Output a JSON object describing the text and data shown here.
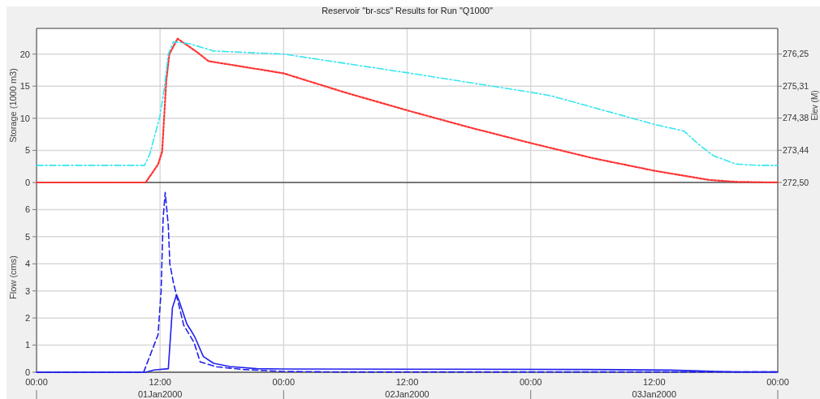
{
  "chart_data": [
    {
      "type": "line",
      "title": "Reservoir \"br-scs\" Results for Run \"Q1000\"",
      "ylabel": "Storage (1000 m3)",
      "y2label": "Elev (M)",
      "xlim": [
        "2000-01-01T00:00",
        "2000-01-04T00:00"
      ],
      "xticks": [
        {
          "value": "2000-01-01T00:00",
          "label": null
        },
        {
          "value": "2000-01-01T12:00",
          "label": null
        },
        {
          "value": "2000-01-02T00:00",
          "label": null
        },
        {
          "value": "2000-01-02T12:00",
          "label": null
        },
        {
          "value": "2000-01-03T00:00",
          "label": null
        },
        {
          "value": "2000-01-03T12:00",
          "label": null
        },
        {
          "value": "2000-01-04T00:00",
          "label": null
        }
      ],
      "ylim": [
        0,
        24
      ],
      "yticks": [
        0,
        5,
        10,
        15,
        20
      ],
      "y2lim": [
        272.5,
        277
      ],
      "y2ticks": [
        {
          "value": 272.5,
          "label": "272,50"
        },
        {
          "value": 273.44,
          "label": "273,44"
        },
        {
          "value": 274.38,
          "label": "274,38"
        },
        {
          "value": 275.31,
          "label": "275,31"
        },
        {
          "value": 276.25,
          "label": "276,25"
        }
      ],
      "grid": true,
      "tick_labels": "y",
      "series": [
        {
          "color": "#ff3333",
          "line_style": "dotted",
          "x": [
            "2000-01-01T00:00",
            "2000-01-01T10:36",
            "2000-01-01T11:48",
            "2000-01-01T12:12",
            "2000-01-01T12:36",
            "2000-01-01T12:54",
            "2000-01-01T13:42",
            "2000-01-01T15:36",
            "2000-01-01T16:42",
            "2000-01-02T00:00",
            "2000-01-02T06:00",
            "2000-01-02T12:18",
            "2000-01-02T18:00",
            "2000-01-03T00:06",
            "2000-01-03T06:00",
            "2000-01-03T12:06",
            "2000-01-03T17:18",
            "2000-01-03T19:54",
            "2000-01-04T00:00"
          ],
          "values": [
            0,
            0,
            2.8,
            4.8,
            15.8,
            20,
            22.4,
            20.3,
            18.9,
            17,
            14,
            11.1,
            8.6,
            6.1,
            3.8,
            1.8,
            0.4,
            0.1,
            0
          ]
        },
        {
          "color": "#33e6f0",
          "line_style": "dashdot",
          "axis": "y2",
          "x": [
            "2000-01-01T00:00",
            "2000-01-01T10:30",
            "2000-01-01T11:00",
            "2000-01-01T12:00",
            "2000-01-01T12:24",
            "2000-01-01T12:48",
            "2000-01-01T13:18",
            "2000-01-01T14:54",
            "2000-01-01T17:12",
            "2000-01-02T00:00",
            "2000-01-02T12:18",
            "2000-01-03T00:06",
            "2000-01-03T02:00",
            "2000-01-03T12:06",
            "2000-01-03T14:54",
            "2000-01-03T16:12",
            "2000-01-03T17:42",
            "2000-01-03T19:54",
            "2000-01-03T22:00",
            "2000-01-04T00:00"
          ],
          "values": [
            273,
            273,
            273.33,
            274.45,
            275.24,
            276.25,
            276.61,
            276.55,
            276.34,
            276.25,
            275.69,
            275.13,
            275.03,
            274.19,
            274,
            273.64,
            273.29,
            273.04,
            273,
            273
          ]
        }
      ]
    },
    {
      "type": "line",
      "ylabel": "Flow (cms)",
      "xlim": [
        "2000-01-01T00:00",
        "2000-01-04T00:00"
      ],
      "xticks": [
        {
          "value": "2000-01-01T00:00",
          "label": "00:00"
        },
        {
          "value": "2000-01-01T12:00",
          "label": "12:00"
        },
        {
          "value": "2000-01-02T00:00",
          "label": "00:00"
        },
        {
          "value": "2000-01-02T12:00",
          "label": "12:00"
        },
        {
          "value": "2000-01-03T00:00",
          "label": "00:00"
        },
        {
          "value": "2000-01-03T12:00",
          "label": "12:00"
        },
        {
          "value": "2000-01-04T00:00",
          "label": "00:00"
        }
      ],
      "ylim": [
        0,
        7
      ],
      "yticks": [
        0,
        1,
        2,
        3,
        4,
        5,
        6
      ],
      "grid": true,
      "annotations": [
        "01Jan2000",
        "02Jan2000",
        "03Jan2000"
      ],
      "series": [
        {
          "color": "#2020f0",
          "line_style": "dashed",
          "x": [
            "2000-01-01T00:00",
            "2000-01-01T10:24",
            "2000-01-01T11:48",
            "2000-01-01T12:06",
            "2000-01-01T12:18",
            "2000-01-01T12:30",
            "2000-01-01T12:48",
            "2000-01-01T12:57",
            "2000-01-01T13:18",
            "2000-01-01T14:18",
            "2000-01-01T15:18",
            "2000-01-01T15:54",
            "2000-01-01T17:30",
            "2000-01-01T20:06",
            "2000-01-02T00:00",
            "2000-01-02T06:00",
            "2000-01-04T00:00"
          ],
          "values": [
            0,
            0,
            1.38,
            2.98,
            5.7,
            6.63,
            5.4,
            4,
            3.3,
            1.73,
            1.1,
            0.38,
            0.2,
            0.1,
            0.03,
            0.01,
            0.01
          ]
        },
        {
          "color": "#2020f0",
          "line_style": "solid",
          "x": [
            "2000-01-01T00:00",
            "2000-01-01T10:36",
            "2000-01-01T11:24",
            "2000-01-01T12:48",
            "2000-01-01T13:12",
            "2000-01-01T13:36",
            "2000-01-01T13:54",
            "2000-01-01T14:36",
            "2000-01-01T15:06",
            "2000-01-01T15:24",
            "2000-01-01T16:12",
            "2000-01-01T17:12",
            "2000-01-01T18:48",
            "2000-01-01T21:24",
            "2000-01-02T00:00",
            "2000-01-02T16:30",
            "2000-01-03T05:30",
            "2000-01-03T13:36",
            "2000-01-03T16:18",
            "2000-01-03T18:06",
            "2000-01-03T20:00",
            "2000-01-04T00:00"
          ],
          "values": [
            0,
            0,
            0.08,
            0.13,
            2.38,
            2.86,
            2.58,
            1.78,
            1.48,
            1.28,
            0.58,
            0.33,
            0.21,
            0.13,
            0.12,
            0.11,
            0.1,
            0.08,
            0.05,
            0.03,
            0.01,
            0.01
          ]
        }
      ]
    }
  ]
}
